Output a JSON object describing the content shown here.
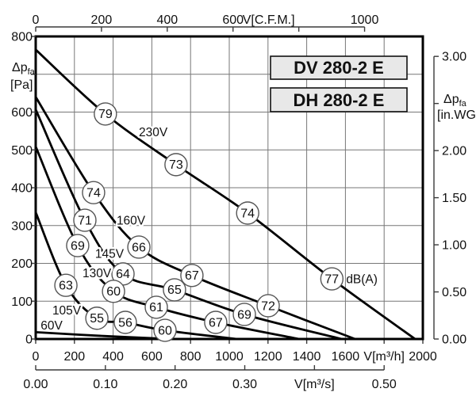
{
  "chart_data": {
    "type": "line",
    "model_badges": [
      "DV 280-2 E",
      "DH 280-2 E"
    ],
    "db_unit_label": "dB(A)",
    "colors": {
      "curve": "#000000",
      "grid": "#777777",
      "badge_fill": "#ffffff",
      "model_badge_fill": "#e8e8e8"
    },
    "x_axis_m3h": {
      "unit_label": "V[m³/h]",
      "range": [
        0,
        2000
      ],
      "tick_values": [
        0,
        200,
        400,
        600,
        800,
        1000,
        1200,
        1400,
        1600,
        1800,
        2000
      ],
      "tick_labels": [
        "0",
        "200",
        "400",
        "600",
        "800",
        "1000",
        "1200",
        "1400",
        "1600",
        "V[m³/h]",
        "2000"
      ]
    },
    "x_axis_cfm": {
      "unit_label": "V[C.F.M.]",
      "m3h_per_cfm": 1.699,
      "tick_values": [
        0,
        200,
        400,
        600,
        800,
        1000
      ],
      "tick_labels": [
        "0",
        "200",
        "400",
        "600",
        "V[C.F.M.]",
        "1000"
      ]
    },
    "x_axis_m3s": {
      "unit_label": "V[m³/s]",
      "m3h_per_m3s": 3600,
      "tick_values": [
        0,
        0.1,
        0.2,
        0.3,
        0.4,
        0.5
      ],
      "tick_labels": [
        "0.00",
        "0.10",
        "0.20",
        "0.30",
        "V[m³/s]",
        "0.50"
      ]
    },
    "y_axis_pa": {
      "title_main": "Δp",
      "title_sub": "fa",
      "title_unit": "[Pa]",
      "range": [
        0,
        800
      ],
      "tick_values": [
        800,
        700,
        600,
        500,
        400,
        300,
        200,
        100,
        0
      ],
      "tick_labels": [
        "800",
        "",
        "600",
        "500",
        "400",
        "300",
        "200",
        "100",
        "0"
      ]
    },
    "y_axis_inwg": {
      "title_main": "Δp",
      "title_sub": "fa",
      "title_unit": "[in.WG]",
      "pa_per_inwg": 249.09,
      "tick_values": [
        3.0,
        2.5,
        2.0,
        1.5,
        1.0,
        0.5,
        0.0
      ],
      "tick_labels": [
        "3.00",
        "",
        "2.00",
        "1.50",
        "1.00",
        "0.50",
        "0.00"
      ]
    },
    "series": [
      {
        "voltage": "230V",
        "label_at": {
          "v": 607,
          "p": 547
        },
        "points": [
          [
            0,
            765
          ],
          [
            360,
            595
          ],
          [
            725,
            461
          ],
          [
            1095,
            333
          ],
          [
            1530,
            159
          ],
          [
            1960,
            0
          ]
        ],
        "db_badges": [
          {
            "db": "79",
            "v": 360,
            "p": 595
          },
          {
            "db": "73",
            "v": 725,
            "p": 461
          },
          {
            "db": "74",
            "v": 1095,
            "p": 333
          },
          {
            "db": "77",
            "v": 1530,
            "p": 159,
            "suffix": "dB(A)"
          }
        ]
      },
      {
        "voltage": "160V",
        "label_at": {
          "v": 492,
          "p": 314
        },
        "points": [
          [
            0,
            640
          ],
          [
            299,
            387
          ],
          [
            533,
            243
          ],
          [
            807,
            168
          ],
          [
            1201,
            88
          ],
          [
            1650,
            0
          ]
        ],
        "db_badges": [
          {
            "db": "74",
            "v": 299,
            "p": 387
          },
          {
            "db": "66",
            "v": 533,
            "p": 243
          },
          {
            "db": "67",
            "v": 807,
            "p": 168
          },
          {
            "db": "72",
            "v": 1201,
            "p": 88
          }
        ]
      },
      {
        "voltage": "145V",
        "label_at": {
          "v": 381,
          "p": 226
        },
        "points": [
          [
            0,
            607
          ],
          [
            254,
            314
          ],
          [
            451,
            172
          ],
          [
            717,
            130
          ],
          [
            1078,
            65
          ],
          [
            1580,
            0
          ]
        ],
        "db_badges": [
          {
            "db": "71",
            "v": 254,
            "p": 314
          },
          {
            "db": "64",
            "v": 451,
            "p": 172
          },
          {
            "db": "65",
            "v": 717,
            "p": 130
          },
          {
            "db": "69",
            "v": 1078,
            "p": 65
          }
        ]
      },
      {
        "voltage": "130V",
        "label_at": {
          "v": 316,
          "p": 174
        },
        "points": [
          [
            0,
            509
          ],
          [
            217,
            247
          ],
          [
            402,
            126
          ],
          [
            623,
            84
          ],
          [
            930,
            44
          ],
          [
            1360,
            0
          ]
        ],
        "db_badges": [
          {
            "db": "69",
            "v": 217,
            "p": 247
          },
          {
            "db": "60",
            "v": 402,
            "p": 126
          },
          {
            "db": "61",
            "v": 623,
            "p": 84
          },
          {
            "db": "67",
            "v": 930,
            "p": 44
          }
        ]
      },
      {
        "voltage": "105V",
        "label_at": {
          "v": 160,
          "p": 76
        },
        "points": [
          [
            0,
            335
          ],
          [
            156,
            142
          ],
          [
            316,
            55
          ],
          [
            463,
            44
          ],
          [
            668,
            23
          ],
          [
            1040,
            0
          ]
        ],
        "db_badges": [
          {
            "db": "63",
            "v": 156,
            "p": 142
          },
          {
            "db": "55",
            "v": 316,
            "p": 55
          },
          {
            "db": "56",
            "v": 463,
            "p": 44
          },
          {
            "db": "60",
            "v": 668,
            "p": 23
          }
        ]
      },
      {
        "voltage": "60V",
        "label_at": {
          "v": 82,
          "p": 36
        },
        "points": [
          [
            0,
            18
          ],
          [
            350,
            8
          ],
          [
            700,
            0
          ]
        ],
        "db_badges": []
      }
    ]
  }
}
